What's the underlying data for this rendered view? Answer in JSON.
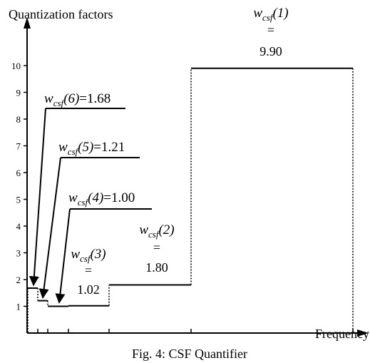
{
  "chart_data": {
    "type": "line",
    "title": "",
    "caption": "Fig. 4: CSF Quantifier",
    "xlabel": "Frequency",
    "ylabel": "Quantization factors",
    "ylim": [
      0,
      10
    ],
    "yticks": [
      "1",
      "2",
      "3",
      "4",
      "5",
      "6",
      "7",
      "8",
      "9",
      "10"
    ],
    "x_tick_count": 6,
    "series": [
      {
        "segments": [
          {
            "id": "6",
            "y": 1.68,
            "x": [
              0,
              1
            ]
          },
          {
            "id": "5",
            "y": 1.21,
            "x": [
              1,
              2
            ]
          },
          {
            "id": "4",
            "y": 1.0,
            "x": [
              2,
              3
            ]
          },
          {
            "id": "3",
            "y": 1.02,
            "x": [
              3,
              4
            ]
          },
          {
            "id": "2",
            "y": 1.8,
            "x": [
              4,
              5
            ]
          },
          {
            "id": "1",
            "y": 9.9,
            "x": [
              5,
              6
            ]
          }
        ]
      }
    ],
    "annotations": [
      {
        "id": "6",
        "base": "w",
        "subscript": "csf",
        "arg": "(6)",
        "equals": "=",
        "value": "1.68",
        "layout": "inline"
      },
      {
        "id": "5",
        "base": "w",
        "subscript": "csf",
        "arg": "(5)",
        "equals": "=",
        "value": "1.21",
        "layout": "inline"
      },
      {
        "id": "4",
        "base": "w",
        "subscript": "csf",
        "arg": "(4)",
        "equals": "=",
        "value": "1.00",
        "layout": "inline"
      },
      {
        "id": "3",
        "base": "w",
        "subscript": "csf",
        "arg": "(3)",
        "equals": "=",
        "value": "1.02",
        "layout": "stacked"
      },
      {
        "id": "2",
        "base": "w",
        "subscript": "csf",
        "arg": "(2)",
        "equals": "=",
        "value": "1.80",
        "layout": "stacked"
      },
      {
        "id": "1",
        "base": "w",
        "subscript": "csf",
        "arg": "(1)",
        "equals": "=",
        "value": "9.90",
        "layout": "stacked"
      }
    ]
  }
}
